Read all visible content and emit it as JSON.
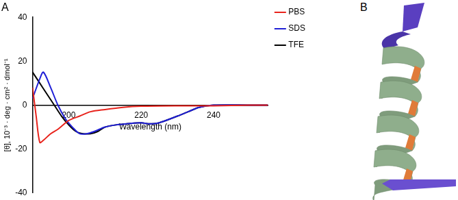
{
  "chart_data": {
    "type": "line",
    "title": "A",
    "x_label": "Wavelength (nm)",
    "y_label": "[θ], 10⁻³ · deg · cm² · dmol⁻¹",
    "xlim": [
      190,
      255
    ],
    "xticks": [
      200,
      220,
      240
    ],
    "ylim": [
      -40,
      40
    ],
    "yticks": [
      -40,
      -20,
      0,
      20,
      40
    ],
    "grid": false,
    "legend": "right",
    "series": [
      {
        "name": "PBS",
        "color": "#e8231c",
        "x": [
          190,
          191,
          192,
          193,
          195,
          197,
          200,
          203,
          206,
          210,
          215,
          220,
          230,
          240,
          250,
          255
        ],
        "values": [
          8,
          -5,
          -17,
          -16,
          -13,
          -11,
          -7,
          -5,
          -3,
          -2,
          -1,
          -0.5,
          -0.3,
          -0.3,
          0,
          0
        ]
      },
      {
        "name": "SDS",
        "color": "#1f1fd6",
        "x": [
          190,
          192,
          193,
          195,
          197,
          199,
          201,
          203,
          205,
          207,
          210,
          213,
          216,
          220,
          222,
          225,
          230,
          233,
          236,
          240,
          250,
          255
        ],
        "values": [
          3,
          12,
          15,
          8,
          0,
          -6,
          -10,
          -13,
          -13,
          -12,
          -10,
          -9,
          -8.5,
          -8,
          -8.5,
          -8,
          -5,
          -3,
          -1,
          0,
          0,
          0
        ]
      },
      {
        "name": "TFE",
        "color": "#000000",
        "x": [
          190,
          192,
          194,
          196,
          198,
          200,
          202,
          204,
          206,
          208,
          210,
          213,
          216,
          220,
          222,
          225,
          230,
          233,
          236,
          240,
          250,
          255
        ],
        "values": [
          15,
          10,
          5,
          0,
          -5,
          -9,
          -12,
          -13,
          -13,
          -12,
          -10,
          -9,
          -8.5,
          -8,
          -8.5,
          -8,
          -5,
          -3,
          -1,
          0,
          0,
          0
        ]
      }
    ]
  },
  "diagram": {
    "label": "B"
  }
}
